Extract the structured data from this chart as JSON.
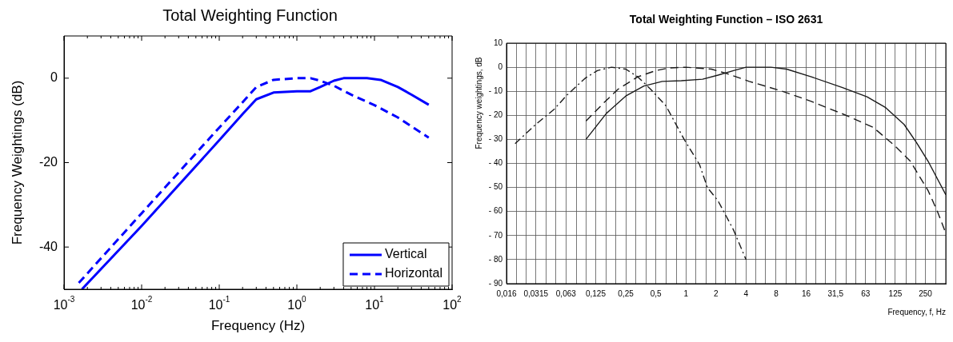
{
  "chart_data": [
    {
      "type": "line",
      "title": "Total Weighting Function",
      "xlabel": "Frequency (Hz)",
      "ylabel": "Frequency Weightings (dB)",
      "log": "x",
      "grid": false,
      "legend": "bottom right",
      "xlim": [
        0.001,
        100
      ],
      "ylim": [
        -50,
        10
      ],
      "xticks": [
        {
          "value": 0.001,
          "label": "10$^{-3}$"
        },
        {
          "value": 0.002,
          "label": null
        },
        {
          "value": 0.003,
          "label": null
        },
        {
          "value": 0.004,
          "label": null
        },
        {
          "value": 0.005,
          "label": null
        },
        {
          "value": 0.006,
          "label": null
        },
        {
          "value": 0.007,
          "label": null
        },
        {
          "value": 0.008,
          "label": null
        },
        {
          "value": 0.009,
          "label": null
        },
        {
          "value": 0.01,
          "label": "10$^{-2}$"
        },
        {
          "value": 0.02,
          "label": null
        },
        {
          "value": 0.03,
          "label": null
        },
        {
          "value": 0.04,
          "label": null
        },
        {
          "value": 0.05,
          "label": null
        },
        {
          "value": 0.06,
          "label": null
        },
        {
          "value": 0.07,
          "label": null
        },
        {
          "value": 0.08,
          "label": null
        },
        {
          "value": 0.09,
          "label": null
        },
        {
          "value": 0.1,
          "label": "10$^{-1}$"
        },
        {
          "value": 0.2,
          "label": null
        },
        {
          "value": 0.3,
          "label": null
        },
        {
          "value": 0.4,
          "label": null
        },
        {
          "value": 0.5,
          "label": null
        },
        {
          "value": 0.6,
          "label": null
        },
        {
          "value": 0.7,
          "label": null
        },
        {
          "value": 0.8,
          "label": null
        },
        {
          "value": 0.9,
          "label": null
        },
        {
          "value": 1,
          "label": "10$^{0}$"
        },
        {
          "value": 2,
          "label": null
        },
        {
          "value": 3,
          "label": null
        },
        {
          "value": 4,
          "label": null
        },
        {
          "value": 5,
          "label": null
        },
        {
          "value": 6,
          "label": null
        },
        {
          "value": 7,
          "label": null
        },
        {
          "value": 8,
          "label": null
        },
        {
          "value": 9,
          "label": null
        },
        {
          "value": 10,
          "label": "10$^{1}$"
        },
        {
          "value": 20,
          "label": null
        },
        {
          "value": 30,
          "label": null
        },
        {
          "value": 40,
          "label": null
        },
        {
          "value": 50,
          "label": null
        },
        {
          "value": 60,
          "label": null
        },
        {
          "value": 70,
          "label": null
        },
        {
          "value": 80,
          "label": null
        },
        {
          "value": 90,
          "label": null
        },
        {
          "value": 100,
          "label": "10$^{2}$"
        }
      ],
      "yticks": [
        -40,
        -20,
        0
      ],
      "series": [
        {
          "name": "Vertical",
          "color": "#0000ff",
          "line_style": "solid",
          "x": [
            0.0017,
            0.01,
            0.1,
            0.2,
            0.3,
            0.5,
            1,
            1.5,
            2,
            3,
            4,
            8,
            12,
            20,
            30,
            50
          ],
          "values": [
            -50,
            -35,
            -14.7,
            -8.5,
            -5,
            -3.4,
            -3.1,
            -3.1,
            -2.1,
            -0.6,
            0,
            0,
            -0.4,
            -2.1,
            -3.9,
            -6.3
          ]
        },
        {
          "name": "Horizontal",
          "color": "#0000ff",
          "line_style": "dashed",
          "x": [
            0.00155,
            0.01,
            0.1,
            0.2,
            0.3,
            0.5,
            1,
            1.5,
            2,
            3,
            5,
            10,
            20,
            50
          ],
          "values": [
            -48.5,
            -32,
            -11.7,
            -5.7,
            -2.1,
            -0.4,
            0,
            0,
            -0.6,
            -1.8,
            -3.9,
            -6.4,
            -9.3,
            -14.1
          ]
        }
      ]
    },
    {
      "type": "line",
      "title": "Total Weighting Function – ISO 2631",
      "xlabel": "Frequency, f, Hz",
      "ylabel": "Frequency weightings, dB",
      "log": "x",
      "grid": true,
      "xlim": [
        0.016,
        400
      ],
      "ylim": [
        -90,
        10
      ],
      "xticks": [
        {
          "value": 0.016,
          "label": "0,016"
        },
        {
          "value": 0.02,
          "label": null
        },
        {
          "value": 0.025,
          "label": null
        },
        {
          "value": 0.0315,
          "label": "0,0315"
        },
        {
          "value": 0.04,
          "label": null
        },
        {
          "value": 0.05,
          "label": null
        },
        {
          "value": 0.063,
          "label": "0,063"
        },
        {
          "value": 0.08,
          "label": null
        },
        {
          "value": 0.1,
          "label": null
        },
        {
          "value": 0.125,
          "label": "0,125"
        },
        {
          "value": 0.16,
          "label": null
        },
        {
          "value": 0.2,
          "label": null
        },
        {
          "value": 0.25,
          "label": "0,25"
        },
        {
          "value": 0.315,
          "label": null
        },
        {
          "value": 0.4,
          "label": null
        },
        {
          "value": 0.5,
          "label": "0,5"
        },
        {
          "value": 0.63,
          "label": null
        },
        {
          "value": 0.8,
          "label": null
        },
        {
          "value": 1,
          "label": "1"
        },
        {
          "value": 1.25,
          "label": null
        },
        {
          "value": 1.6,
          "label": null
        },
        {
          "value": 2,
          "label": "2"
        },
        {
          "value": 2.5,
          "label": null
        },
        {
          "value": 3.15,
          "label": null
        },
        {
          "value": 4,
          "label": "4"
        },
        {
          "value": 5,
          "label": null
        },
        {
          "value": 6.3,
          "label": null
        },
        {
          "value": 8,
          "label": "8"
        },
        {
          "value": 10,
          "label": null
        },
        {
          "value": 12.5,
          "label": null
        },
        {
          "value": 16,
          "label": "16"
        },
        {
          "value": 20,
          "label": null
        },
        {
          "value": 25,
          "label": null
        },
        {
          "value": 31.5,
          "label": "31,5"
        },
        {
          "value": 40,
          "label": null
        },
        {
          "value": 50,
          "label": null
        },
        {
          "value": 63,
          "label": "63"
        },
        {
          "value": 80,
          "label": null
        },
        {
          "value": 100,
          "label": null
        },
        {
          "value": 125,
          "label": "125"
        },
        {
          "value": 160,
          "label": null
        },
        {
          "value": 200,
          "label": null
        },
        {
          "value": 250,
          "label": "250"
        },
        {
          "value": 315,
          "label": null
        },
        {
          "value": 400,
          "label": null
        }
      ],
      "yticks": [
        10,
        0,
        {
          "value": -10,
          "label": "- 10"
        },
        {
          "value": -20,
          "label": "- 20"
        },
        {
          "value": -30,
          "label": "- 30"
        },
        {
          "value": -40,
          "label": "- 40"
        },
        {
          "value": -50,
          "label": "- 50"
        },
        {
          "value": -60,
          "label": "- 60"
        },
        {
          "value": -70,
          "label": "- 70"
        },
        {
          "value": -80,
          "label": "- 80"
        },
        {
          "value": -90,
          "label": "- 90"
        }
      ],
      "series": [
        {
          "color": "#1a1a1a",
          "line_style": "dashdot",
          "x": [
            0.0195,
            0.031,
            0.048,
            0.064,
            0.098,
            0.13,
            0.18,
            0.25,
            0.33,
            0.44,
            0.63,
            0.96,
            1.37,
            1.64,
            2.1,
            3,
            4
          ],
          "values": [
            -31.8,
            -24,
            -17.5,
            -11.7,
            -4.6,
            -1.4,
            0,
            -0.8,
            -4,
            -9,
            -16,
            -30,
            -40.5,
            -50,
            -55.6,
            -67.7,
            -80
          ]
        },
        {
          "color": "#1a1a1a",
          "line_style": "dashed",
          "x": [
            0.1,
            0.15,
            0.21,
            0.33,
            0.5,
            0.68,
            1,
            1.8,
            2.6,
            4.3,
            8.8,
            18,
            37,
            75,
            123,
            176,
            266,
            330,
            400
          ],
          "values": [
            -22.4,
            -14.9,
            -9.1,
            -4,
            -1.4,
            -0.3,
            0,
            -0.8,
            -2.7,
            -5.9,
            -9.7,
            -14.2,
            -19.4,
            -25,
            -32.6,
            -39,
            -51.3,
            -60,
            -69
          ]
        },
        {
          "color": "#1a1a1a",
          "line_style": "solid",
          "x": [
            0.1,
            0.16,
            0.25,
            0.38,
            0.58,
            0.9,
            1.47,
            2.1,
            3,
            4,
            7.1,
            10.2,
            18,
            37,
            65,
            100,
            153,
            204,
            266,
            400
          ],
          "values": [
            -30,
            -19.2,
            -12,
            -7.8,
            -5.9,
            -5.6,
            -5,
            -3.3,
            -1.4,
            0,
            0,
            -0.8,
            -4,
            -8.5,
            -12.3,
            -16.8,
            -23.8,
            -31.4,
            -39.1,
            -53
          ]
        }
      ]
    }
  ]
}
